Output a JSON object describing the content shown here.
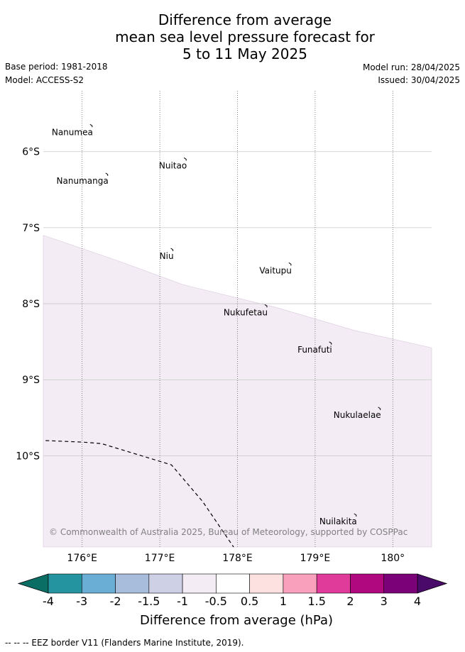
{
  "title": {
    "line1": "Difference from average",
    "line2": "mean sea level pressure forecast for",
    "line3": "5 to 11 May 2025"
  },
  "meta": {
    "base_period": "Base period: 1981-2018",
    "model": "Model: ACCESS-S2",
    "model_run": "Model run: 28/04/2025",
    "issued": "Issued: 30/04/2025"
  },
  "map": {
    "lon_range": [
      175.5,
      180.5
    ],
    "lat_range": [
      -11.2,
      -5.2
    ],
    "lon_ticks": [
      {
        "value": 176,
        "label": "176°E"
      },
      {
        "value": 177,
        "label": "177°E"
      },
      {
        "value": 178,
        "label": "178°E"
      },
      {
        "value": 179,
        "label": "179°E"
      },
      {
        "value": 180,
        "label": "180°"
      }
    ],
    "lat_ticks": [
      {
        "value": -6,
        "label": "6°S"
      },
      {
        "value": -7,
        "label": "7°S"
      },
      {
        "value": -8,
        "label": "8°S"
      },
      {
        "value": -9,
        "label": "9°S"
      },
      {
        "value": -10,
        "label": "10°S"
      }
    ],
    "anomaly_region": {
      "class": "-1 to -0.5",
      "color": "#f4ecf5",
      "boundary": [
        [
          175.5,
          -7.1
        ],
        [
          176.5,
          -7.45
        ],
        [
          177.3,
          -7.75
        ],
        [
          178.5,
          -8.05
        ],
        [
          179.5,
          -8.35
        ],
        [
          180.5,
          -8.58
        ]
      ]
    },
    "eez_border": [
      [
        175.53,
        -9.8
      ],
      [
        176.0,
        -9.82
      ],
      [
        176.25,
        -9.84
      ],
      [
        176.7,
        -9.98
      ],
      [
        177.15,
        -10.12
      ],
      [
        177.55,
        -10.6
      ],
      [
        177.95,
        -11.2
      ]
    ],
    "islands": [
      {
        "name": "Nanumea",
        "lon": 176.12,
        "lat": -5.66
      },
      {
        "name": "Nuitao",
        "lon": 177.33,
        "lat": -6.1
      },
      {
        "name": "Nanumanga",
        "lon": 176.32,
        "lat": -6.3
      },
      {
        "name": "Niu",
        "lon": 177.16,
        "lat": -7.29
      },
      {
        "name": "Vaitupu",
        "lon": 178.68,
        "lat": -7.48
      },
      {
        "name": "Nukufetau",
        "lon": 178.37,
        "lat": -8.03
      },
      {
        "name": "Funafuti",
        "lon": 179.2,
        "lat": -8.52
      },
      {
        "name": "Nukulaelae",
        "lon": 179.83,
        "lat": -9.38
      },
      {
        "name": "Nuilakita",
        "lon": 179.52,
        "lat": -10.78
      }
    ],
    "copyright": "© Commonwealth of Australia 2025, Bureau of Meteorology, supported by COSPPac"
  },
  "colorbar": {
    "label": "Difference from average (hPa)",
    "tick_labels": [
      "-4",
      "-3",
      "-2",
      "-1.5",
      "-1",
      "-0.5",
      "0.5",
      "1",
      "1.5",
      "2",
      "3",
      "4"
    ],
    "under_color": "#0a6e64",
    "over_color": "#4a0a6a",
    "colors": [
      "#0a8080",
      "#2494a0",
      "#6aaed6",
      "#a8bcdc",
      "#ced0e6",
      "#f4ecf5",
      "#ffffff",
      "#fde0e0",
      "#f9a0bc",
      "#e03a9a",
      "#b0087e",
      "#7a0177"
    ]
  },
  "footer": "-- -- -- EEZ border V11 (Flanders Marine Institute, 2019)."
}
